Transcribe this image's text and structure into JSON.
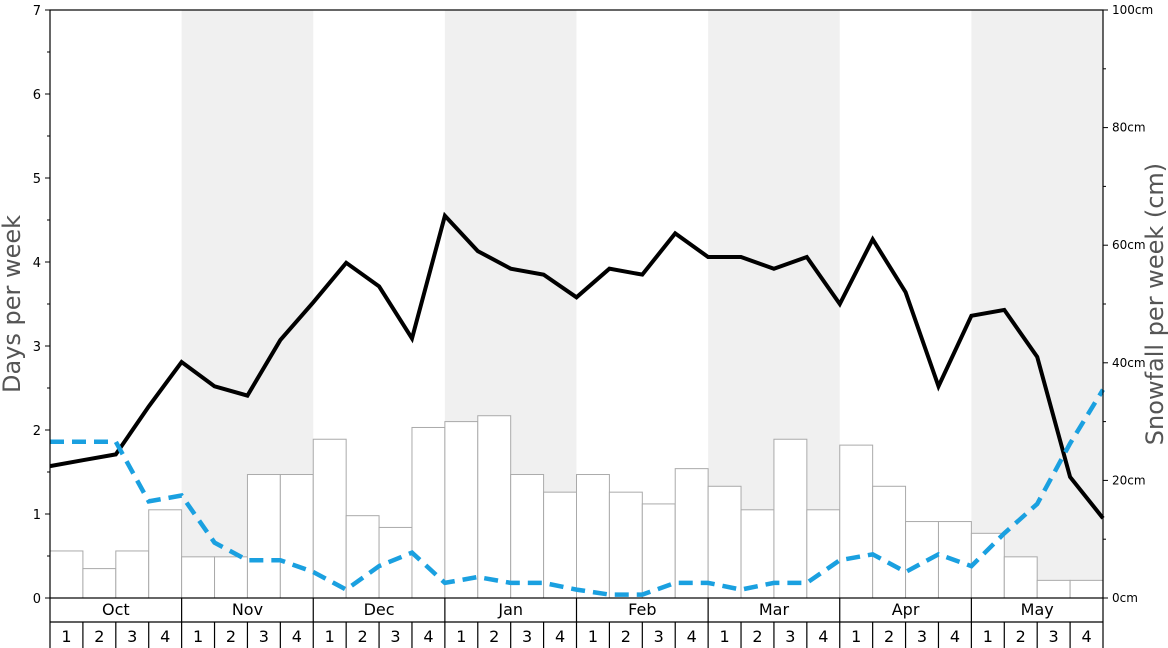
{
  "chart_data": {
    "type": "bar",
    "left_axis": {
      "label": "Days per week",
      "ylim": [
        0,
        7
      ],
      "ticks": [
        "0",
        "1",
        "2",
        "3",
        "4",
        "5",
        "6",
        "7"
      ]
    },
    "right_axis": {
      "label": "Snowfall per week (cm)",
      "ylim": [
        0,
        100
      ],
      "ticks": [
        "0cm",
        "20cm",
        "40cm",
        "60cm",
        "80cm",
        "100cm"
      ]
    },
    "months": [
      "Oct",
      "Nov",
      "Dec",
      "Jan",
      "Feb",
      "Mar",
      "Apr",
      "May"
    ],
    "week_labels": [
      "1",
      "2",
      "3",
      "4"
    ],
    "shaded_months": [
      "Nov",
      "Jan",
      "Mar",
      "May"
    ],
    "series": [
      {
        "kind": "bar",
        "axis": "right",
        "color": "#ffffff",
        "edge_color": "#aaaaaa",
        "values": [
          8,
          5,
          8,
          15,
          7,
          7,
          21,
          21,
          27,
          14,
          12,
          29,
          30,
          31,
          21,
          18,
          21,
          18,
          16,
          22,
          19,
          15,
          27,
          15,
          26,
          19,
          13,
          13,
          11,
          7,
          3,
          3
        ]
      },
      {
        "kind": "line",
        "axis": "left",
        "color": "#000000",
        "style": "solid",
        "values": [
          1.57,
          1.64,
          1.71,
          2.28,
          2.81,
          2.52,
          2.41,
          3.07,
          3.52,
          3.99,
          3.71,
          3.09,
          4.55,
          4.13,
          3.92,
          3.85,
          3.58,
          3.92,
          3.85,
          4.34,
          4.06,
          4.06,
          3.92,
          4.06,
          3.5,
          4.27,
          3.64,
          2.52,
          3.36,
          3.43,
          2.87,
          1.44,
          0.95
        ]
      },
      {
        "kind": "line",
        "axis": "left",
        "color": "#1aa0e0",
        "style": "dashed",
        "values": [
          1.86,
          1.86,
          1.86,
          1.15,
          1.22,
          0.66,
          0.45,
          0.45,
          0.31,
          0.1,
          0.38,
          0.54,
          0.18,
          0.25,
          0.18,
          0.18,
          0.1,
          0.04,
          0.04,
          0.18,
          0.18,
          0.1,
          0.18,
          0.18,
          0.45,
          0.52,
          0.31,
          0.52,
          0.38,
          0.77,
          1.12,
          1.84,
          2.48
        ]
      }
    ],
    "grid": false
  }
}
